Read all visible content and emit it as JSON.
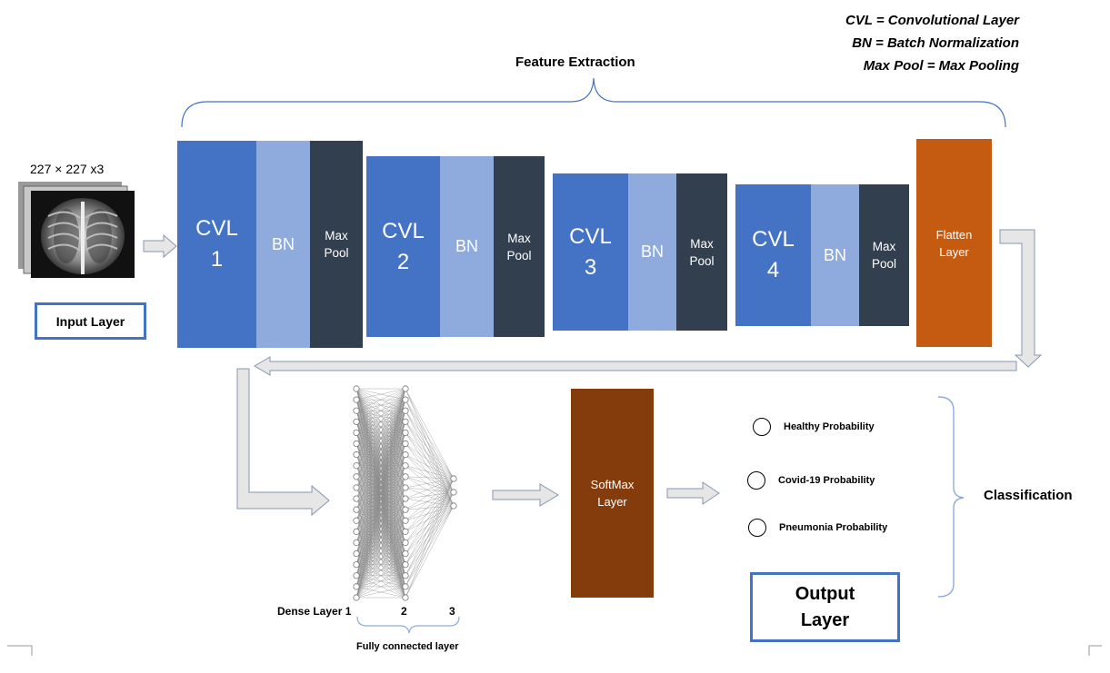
{
  "legend": {
    "line1": "CVL = Convolutional Layer",
    "line2": "BN = Batch Normalization",
    "line3": "Max Pool = Max Pooling"
  },
  "feature_extraction": "Feature Extraction",
  "input": {
    "size": "227 × 227 x3",
    "label": "Input Layer"
  },
  "stages": [
    {
      "cvl": "CVL\n1",
      "bn": "BN",
      "pool": "Max\nPool"
    },
    {
      "cvl": "CVL\n2",
      "bn": "BN",
      "pool": "Max\nPool"
    },
    {
      "cvl": "CVL\n3",
      "bn": "BN",
      "pool": "Max\nPool"
    },
    {
      "cvl": "CVL\n4",
      "bn": "BN",
      "pool": "Max\nPool"
    }
  ],
  "flatten": "Flatten\nLayer",
  "softmax": "SoftMax\nLayer",
  "dense": {
    "label1": "Dense Layer 1",
    "label2": "2",
    "label3": "3",
    "caption": "Fully connected layer",
    "neurons": [
      20,
      20,
      3
    ]
  },
  "outputs": [
    {
      "label": "Healthy Probability"
    },
    {
      "label": "Covid-19 Probability"
    },
    {
      "label": "Pneumonia Probability"
    }
  ],
  "classification": "Classification",
  "output_layer": "Output\nLayer",
  "colors": {
    "cvl": "#4472c4",
    "bn": "#8faadc",
    "pool": "#323f4f",
    "flatten": "#c55a11",
    "softmax": "#843c0c",
    "accent": "#4472c4"
  },
  "icons": [
    "xray-image-stack",
    "block-arrow-right",
    "block-arrow-left",
    "block-arrow-down",
    "brace"
  ]
}
